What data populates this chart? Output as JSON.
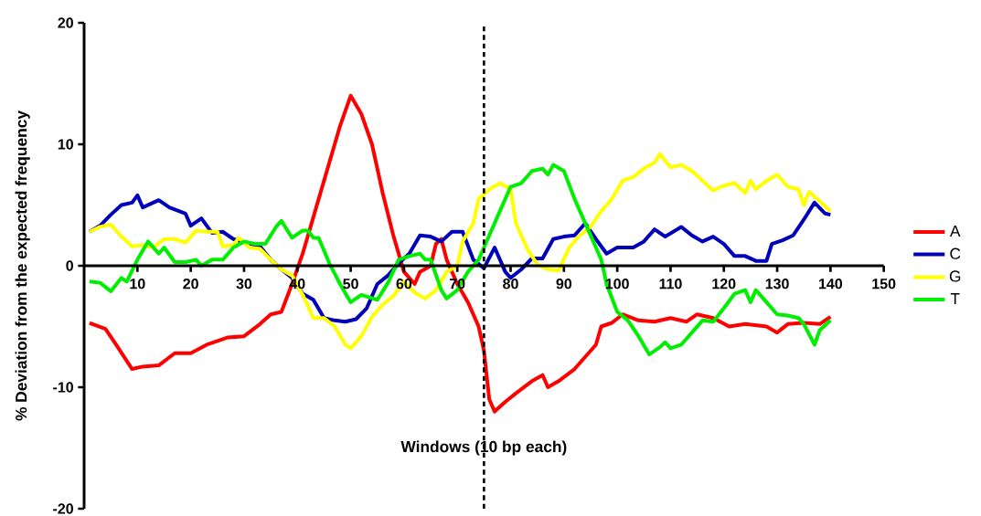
{
  "chart_data": {
    "type": "line",
    "xlabel": "Windows (10 bp each)",
    "ylabel": "% Deviation from the expected frequency",
    "xlim": [
      0,
      150
    ],
    "ylim": [
      -20,
      20
    ],
    "xticks": [
      10,
      20,
      30,
      40,
      50,
      60,
      70,
      80,
      90,
      100,
      110,
      120,
      130,
      140,
      150
    ],
    "yticks": [
      -20,
      -10,
      0,
      10,
      20
    ],
    "grid": false,
    "legend": "right",
    "marker": "none",
    "line_style": "solid",
    "ref_lines": [
      {
        "axis": "x",
        "value": 75,
        "line_style": "dashed",
        "color": "#000000"
      }
    ],
    "series": [
      {
        "name": "A",
        "color": "#ff0000",
        "x": [
          1,
          4,
          6,
          9,
          11,
          14,
          17,
          20,
          23,
          27,
          30,
          33,
          35,
          37,
          39,
          41,
          43,
          45,
          48,
          50,
          52,
          54,
          56,
          58,
          60,
          62,
          63,
          65,
          66,
          67,
          68,
          70,
          72,
          74,
          75,
          76,
          77,
          79,
          81,
          84,
          86,
          87,
          89,
          92,
          94,
          96,
          97,
          99,
          101,
          104,
          107,
          110,
          113,
          115,
          118,
          121,
          124,
          128,
          130,
          132,
          135,
          138,
          140
        ],
        "values": [
          -4.7,
          -5.2,
          -6.5,
          -8.5,
          -8.3,
          -8.2,
          -7.2,
          -7.2,
          -6.5,
          -5.9,
          -5.8,
          -4.8,
          -4,
          -3.8,
          -1.5,
          1,
          4,
          7,
          11.5,
          14,
          12.5,
          10,
          6,
          2.5,
          -0.5,
          -1.5,
          -0.5,
          0,
          1.8,
          2.2,
          0.5,
          -1.5,
          -3,
          -5,
          -7,
          -11,
          -12,
          -11.2,
          -10.5,
          -9.5,
          -9,
          -10,
          -9.5,
          -8.5,
          -7.5,
          -6.5,
          -5,
          -4.7,
          -4,
          -4.5,
          -4.6,
          -4.3,
          -4.6,
          -4,
          -4.3,
          -5,
          -4.8,
          -5,
          -5.5,
          -4.8,
          -4.7,
          -4.8,
          -4.2
        ]
      },
      {
        "name": "C",
        "color": "#0000bb",
        "x": [
          1,
          3,
          5,
          7,
          9,
          10,
          11,
          14,
          16,
          19,
          20,
          22,
          24,
          26,
          28,
          31,
          33,
          35,
          37,
          39,
          41,
          43,
          45,
          47,
          49,
          51,
          53,
          55,
          57,
          59,
          61,
          63,
          65,
          67,
          69,
          71,
          73,
          75,
          77,
          79,
          80,
          82,
          84,
          86,
          88,
          90,
          92,
          94,
          96,
          98,
          100,
          103,
          105,
          107,
          109,
          112,
          114,
          116,
          118,
          120,
          122,
          124,
          126,
          128,
          129,
          131,
          133,
          135,
          137,
          139,
          140
        ],
        "values": [
          2.8,
          3.3,
          4.2,
          5,
          5.2,
          5.8,
          4.8,
          5.4,
          4.8,
          4.3,
          3.3,
          3.9,
          2.7,
          2.8,
          2.2,
          1.8,
          1.6,
          0.5,
          -0.3,
          -1,
          -2.3,
          -2.8,
          -4.3,
          -4.5,
          -4.6,
          -4.4,
          -3.5,
          -1.5,
          -0.8,
          0.2,
          1,
          2.5,
          2.4,
          2,
          2.8,
          2.8,
          0.5,
          -0.2,
          1.5,
          -0.5,
          -1,
          -0.3,
          0.6,
          0.6,
          2.2,
          2.4,
          2.5,
          3.5,
          2.2,
          1,
          1.5,
          1.5,
          2,
          3,
          2.4,
          3.2,
          2.5,
          2,
          2.4,
          1.8,
          0.8,
          0.8,
          0.4,
          0.4,
          1.8,
          2.1,
          2.5,
          3.8,
          5.2,
          4.3,
          4.2
        ]
      },
      {
        "name": "G",
        "color": "#ffff00",
        "x": [
          1,
          3,
          5,
          7,
          9,
          11,
          13,
          15,
          17,
          19,
          21,
          23,
          25,
          26,
          28,
          29,
          31,
          33,
          35,
          37,
          39,
          41,
          43,
          45,
          47,
          49,
          50,
          52,
          54,
          56,
          58,
          60,
          62,
          64,
          66,
          68,
          70,
          71,
          73,
          74,
          76,
          78,
          80,
          81,
          83,
          85,
          87,
          89,
          91,
          93,
          95,
          97,
          99,
          101,
          103,
          105,
          107,
          108,
          110,
          112,
          114,
          116,
          118,
          120,
          122,
          124,
          125,
          126,
          128,
          130,
          132,
          134,
          135,
          136,
          138,
          140
        ],
        "values": [
          2.8,
          3.2,
          3.4,
          2.4,
          1.6,
          1.7,
          1.5,
          2.2,
          2.2,
          1.9,
          2.9,
          2.8,
          2.8,
          1.6,
          1.7,
          2.3,
          1.5,
          1.4,
          0.5,
          -0.3,
          -0.8,
          -2.4,
          -4.3,
          -4.3,
          -5,
          -6.5,
          -6.8,
          -5.8,
          -4.2,
          -3.2,
          -2.5,
          -1.3,
          -2.2,
          -2.7,
          -2,
          -0.5,
          0,
          2,
          3.5,
          5.5,
          6.3,
          6.8,
          6.3,
          3.5,
          1.5,
          0.1,
          -0.3,
          -0.4,
          1.5,
          2.5,
          3.2,
          4.5,
          5.5,
          7,
          7.3,
          8,
          8.5,
          9.2,
          8.1,
          8.3,
          7.8,
          7,
          6.2,
          6.6,
          6.8,
          6,
          7,
          6.3,
          7,
          7.5,
          6.5,
          6.3,
          5,
          6.1,
          5.3,
          4.5
        ]
      },
      {
        "name": "T",
        "color": "#00ee00",
        "x": [
          1,
          3,
          5,
          7,
          8,
          10,
          12,
          14,
          15,
          17,
          19,
          21,
          22,
          24,
          26,
          28,
          30,
          32,
          34,
          36,
          37,
          39,
          41,
          42,
          43,
          44,
          46,
          48,
          50,
          52,
          55,
          57,
          59,
          61,
          63,
          64,
          65,
          67,
          68,
          70,
          72,
          74,
          76,
          78,
          80,
          82,
          84,
          86,
          87,
          88,
          90,
          92,
          94,
          96,
          97,
          98,
          100,
          102,
          104,
          106,
          108,
          109,
          110,
          112,
          114,
          116,
          118,
          120,
          122,
          124,
          125,
          126,
          128,
          130,
          132,
          134,
          135,
          137,
          138,
          140
        ],
        "values": [
          -1.3,
          -1.4,
          -2.1,
          -1,
          -1.3,
          0.5,
          2,
          1,
          1.5,
          0.3,
          0.3,
          0.5,
          0,
          0.5,
          0.5,
          1.5,
          2,
          1.8,
          1.8,
          3.2,
          3.7,
          2.3,
          2.9,
          2.9,
          2.3,
          2.3,
          0.2,
          -1.5,
          -3,
          -2.4,
          -2.8,
          -1.4,
          0.5,
          0.8,
          1,
          0.5,
          0.5,
          -2,
          -2.7,
          -2,
          -0.5,
          0.5,
          2.5,
          4.5,
          6.5,
          6.8,
          7.8,
          8,
          7.5,
          8.3,
          7.8,
          5.5,
          3.5,
          1.5,
          0.5,
          -1.5,
          -3.8,
          -4.5,
          -5.8,
          -7.3,
          -6.7,
          -6.3,
          -6.8,
          -6.5,
          -5.5,
          -4.5,
          -4.6,
          -3.5,
          -2.3,
          -2,
          -3,
          -2,
          -3,
          -4,
          -4.1,
          -4.3,
          -4.8,
          -6.5,
          -5.3,
          -4.5
        ]
      }
    ]
  }
}
